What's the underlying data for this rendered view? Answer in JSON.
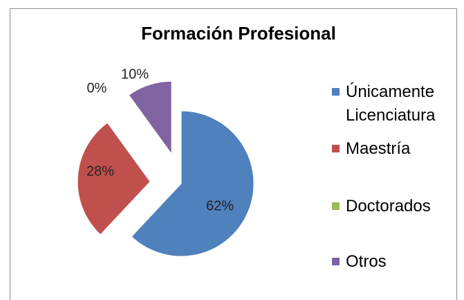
{
  "chart_data": {
    "type": "pie",
    "title": "Formación Profesional",
    "categories": [
      "Únicamente Licenciatura",
      "Maestría",
      "Doctorados",
      "Otros"
    ],
    "values": [
      62,
      28,
      0,
      10
    ],
    "value_labels": [
      "62%",
      "28%",
      "0%",
      "10%"
    ],
    "colors": [
      "#4f81bd",
      "#c0504d",
      "#9bbb59",
      "#8064a2"
    ],
    "legend": "right"
  }
}
